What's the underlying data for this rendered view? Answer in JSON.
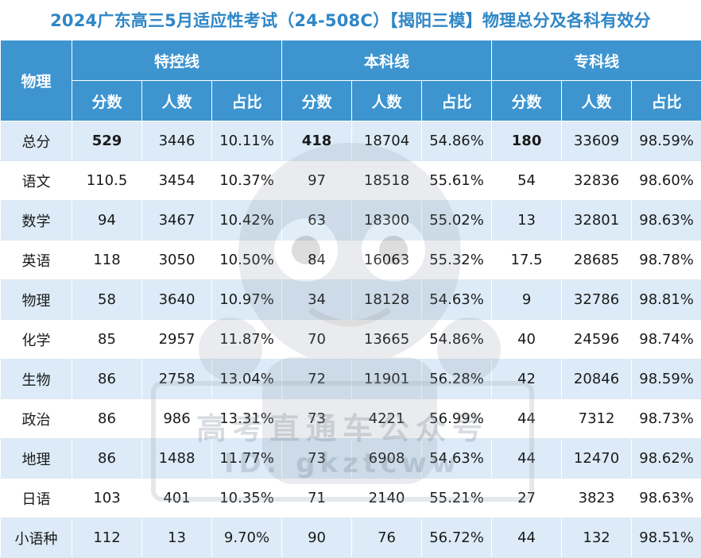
{
  "title": "2024广东高三5月适应性考试（24-508C）【揭阳三模】物理总分及各科有效分",
  "header": {
    "corner": "物理",
    "groups": [
      "特控线",
      "本科线",
      "专科线"
    ],
    "subcols": [
      "分数",
      "人数",
      "占比"
    ]
  },
  "rows": [
    {
      "subject": "总分",
      "cells": [
        "529",
        "3446",
        "10.11%",
        "418",
        "18704",
        "54.86%",
        "180",
        "33609",
        "98.59%"
      ]
    },
    {
      "subject": "语文",
      "cells": [
        "110.5",
        "3454",
        "10.37%",
        "97",
        "18518",
        "55.61%",
        "54",
        "32836",
        "98.60%"
      ]
    },
    {
      "subject": "数学",
      "cells": [
        "94",
        "3467",
        "10.42%",
        "63",
        "18300",
        "55.02%",
        "13",
        "32801",
        "98.63%"
      ]
    },
    {
      "subject": "英语",
      "cells": [
        "118",
        "3050",
        "10.50%",
        "84",
        "16063",
        "55.32%",
        "17.5",
        "28685",
        "98.78%"
      ]
    },
    {
      "subject": "物理",
      "cells": [
        "58",
        "3640",
        "10.97%",
        "34",
        "18128",
        "54.63%",
        "9",
        "32786",
        "98.81%"
      ]
    },
    {
      "subject": "化学",
      "cells": [
        "85",
        "2957",
        "11.87%",
        "70",
        "13665",
        "54.86%",
        "40",
        "24596",
        "98.74%"
      ]
    },
    {
      "subject": "生物",
      "cells": [
        "86",
        "2758",
        "13.04%",
        "72",
        "11901",
        "56.28%",
        "42",
        "20846",
        "98.59%"
      ]
    },
    {
      "subject": "政治",
      "cells": [
        "86",
        "986",
        "13.31%",
        "73",
        "4221",
        "56.99%",
        "44",
        "7312",
        "98.73%"
      ]
    },
    {
      "subject": "地理",
      "cells": [
        "86",
        "1488",
        "11.77%",
        "73",
        "6908",
        "54.63%",
        "44",
        "12470",
        "98.62%"
      ]
    },
    {
      "subject": "日语",
      "cells": [
        "103",
        "401",
        "10.35%",
        "71",
        "2140",
        "55.21%",
        "27",
        "3823",
        "98.63%"
      ]
    },
    {
      "subject": "小语种",
      "cells": [
        "112",
        "13",
        "9.70%",
        "90",
        "76",
        "56.72%",
        "44",
        "132",
        "98.51%"
      ]
    }
  ],
  "watermark": {
    "line1": "高考直通车公众号",
    "line2": "ID: gkztcww"
  },
  "colors": {
    "title": "#2f86c6",
    "header_bg": "#3d94cf",
    "stripe": "#dcebf7",
    "highlight": "#e0121b"
  }
}
